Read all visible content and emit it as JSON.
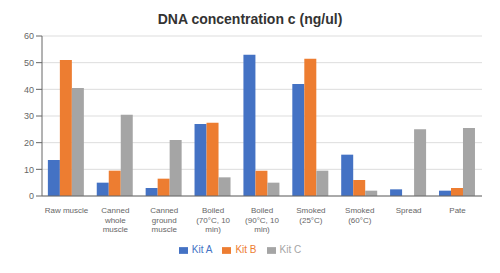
{
  "chart_data": {
    "type": "bar",
    "title": "DNA concentration c (ng/ul)",
    "categories": [
      "Raw muscle",
      "Canned\nwhole\nmuscle",
      "Canned\nground\nmuscle",
      "Boiled\n(70°C, 10\nmin)",
      "Boiled\n(90°C, 10\nmin)",
      "Smoked\n(25°C)",
      "Smoked\n(60°C)",
      "Spread",
      "Pate"
    ],
    "series": [
      {
        "name": "Kit A",
        "color": "#4472C4",
        "values": [
          13.5,
          5,
          3,
          27,
          53,
          42,
          15.5,
          2.5,
          2
        ]
      },
      {
        "name": "Kit B",
        "color": "#ED7D31",
        "values": [
          51,
          9.5,
          6.5,
          27.5,
          9.5,
          51.5,
          6,
          0,
          3
        ]
      },
      {
        "name": "Kit C",
        "color": "#A5A5A5",
        "values": [
          40.5,
          30.5,
          21,
          7,
          5,
          9.5,
          2,
          25,
          25.5
        ]
      }
    ],
    "ylim": [
      0,
      60
    ],
    "yticks": [
      0,
      10,
      20,
      30,
      40,
      50,
      60
    ],
    "grid": true,
    "legend": "bottom"
  }
}
